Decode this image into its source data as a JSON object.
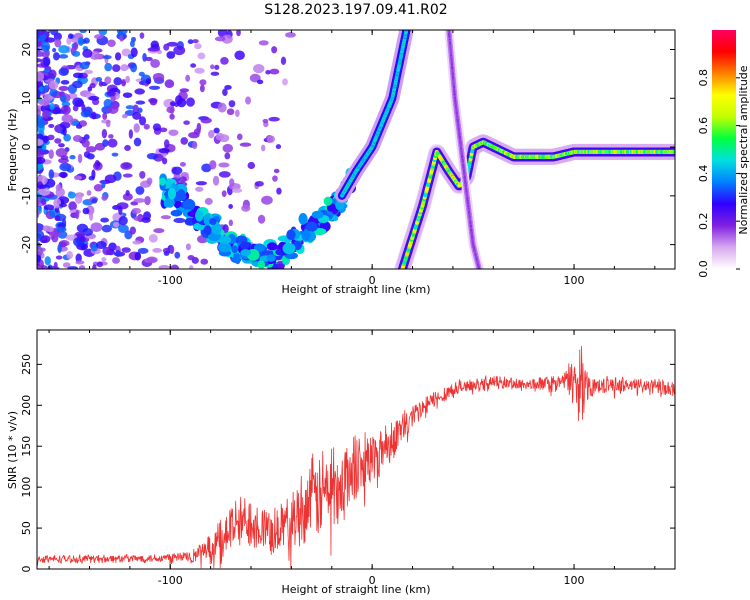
{
  "title": "S128.2023.197.09.41.R02",
  "chart_data": [
    {
      "type": "heatmap",
      "xlabel": "Height of straight line (km)",
      "ylabel": "Frequency (Hz)",
      "xlim": [
        -166,
        150
      ],
      "ylim": [
        -25,
        24
      ],
      "xticks": [
        -100,
        0,
        100
      ],
      "yticks": [
        -20,
        -10,
        0,
        10,
        20
      ],
      "grid": false,
      "colorbar": {
        "label": "Normalized spectral amplitude",
        "range": [
          0,
          1
        ],
        "ticks": [
          "0.0",
          "0.2",
          "0.4",
          "0.6",
          "0.8"
        ],
        "colors": [
          "#ffffff",
          "#d8a8f0",
          "#8020e0",
          "#3000ff",
          "#0080ff",
          "#00e0e0",
          "#00ff40",
          "#c0ff00",
          "#ffff00",
          "#ff8000",
          "#ff0000",
          "#ff0060"
        ]
      },
      "features": {
        "scatter_region_x": [
          -166,
          -40
        ],
        "main_trace": {
          "x": [
            -104,
            -90,
            -80,
            -70,
            -60,
            -52,
            -45,
            -35,
            -25,
            -15,
            -8,
            0,
            10,
            17
          ],
          "y": [
            -8,
            -13,
            -17,
            -20,
            -22,
            -23,
            -21,
            -19,
            -15,
            -10,
            -5,
            0,
            10,
            24
          ]
        },
        "secondary_trace": {
          "x": [
            15,
            25,
            32,
            38,
            43,
            47,
            50,
            55,
            60,
            70,
            80,
            90,
            100,
            110,
            120,
            130,
            140,
            150
          ],
          "y": [
            -25,
            -12,
            -1,
            -5,
            -8,
            -6,
            0,
            1,
            0,
            -2,
            -2,
            -2,
            -1,
            -1,
            -1,
            -1,
            -1,
            -1
          ]
        },
        "descending_trace": {
          "x": [
            38,
            41,
            44,
            47,
            50,
            53
          ],
          "y": [
            24,
            10,
            0,
            -10,
            -20,
            -25
          ]
        }
      }
    },
    {
      "type": "line",
      "xlabel": "Height of straight line (km)",
      "ylabel": "SNR (10 * v/v)",
      "xlim": [
        -166,
        150
      ],
      "ylim": [
        0,
        292
      ],
      "xticks": [
        -100,
        0,
        100
      ],
      "yticks": [
        0,
        50,
        100,
        150,
        200,
        250
      ],
      "grid": false,
      "series": [
        {
          "color": "#ee3333",
          "envelope": {
            "x": [
              -166,
              -110,
              -90,
              -80,
              -70,
              -60,
              -50,
              -40,
              -30,
              -20,
              -10,
              0,
              10,
              20,
              30,
              40,
              60,
              80,
              95,
              100,
              103,
              106,
              110,
              130,
              150
            ],
            "mean": [
              12,
              13,
              15,
              25,
              50,
              60,
              45,
              60,
              85,
              100,
              120,
              135,
              160,
              185,
              205,
              220,
              228,
              225,
              230,
              230,
              225,
              225,
              225,
              225,
              220
            ],
            "spread": [
              6,
              6,
              10,
              20,
              40,
              40,
              35,
              45,
              60,
              70,
              60,
              45,
              30,
              22,
              15,
              12,
              10,
              10,
              12,
              40,
              60,
              25,
              12,
              12,
              12
            ]
          }
        }
      ]
    }
  ]
}
